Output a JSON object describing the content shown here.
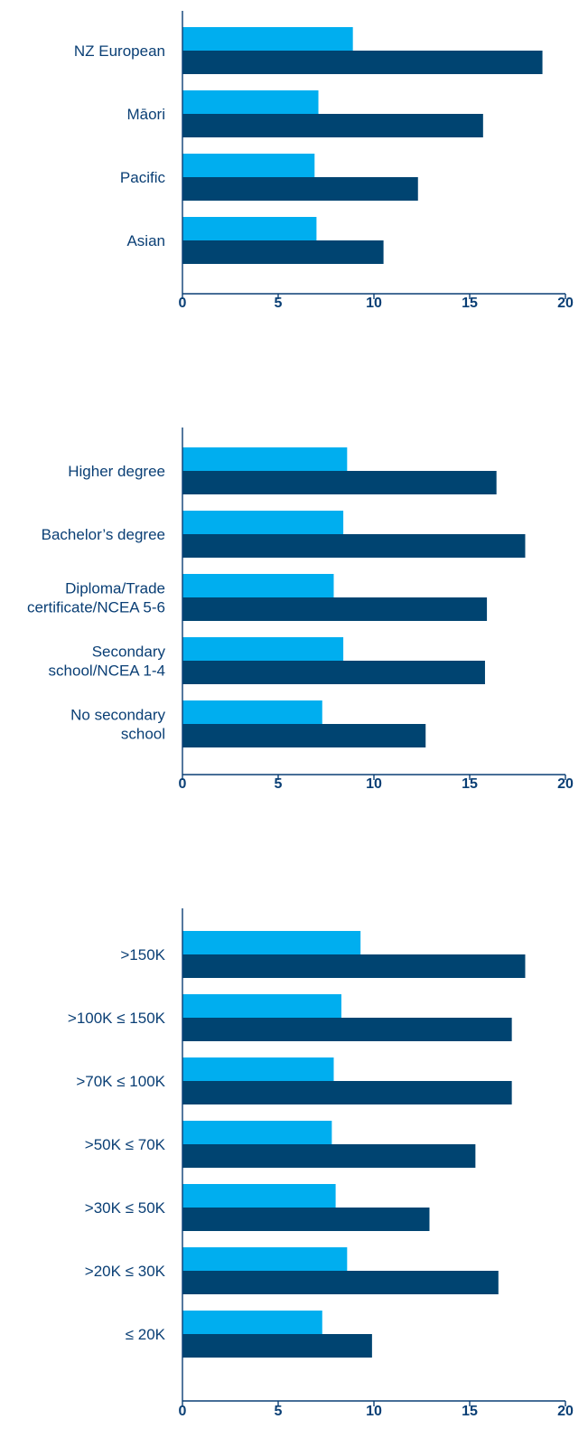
{
  "chart_data": [
    {
      "type": "bar",
      "orientation": "horizontal",
      "xlim": [
        0,
        20
      ],
      "xticks": [
        "0",
        "5",
        "10",
        "15",
        "20"
      ],
      "categories": [
        [
          "NZ European"
        ],
        [
          "Māori"
        ],
        [
          "Pacific"
        ],
        [
          "Asian"
        ]
      ],
      "series": [
        {
          "values": [
            8.9,
            7.1,
            6.9,
            7.0
          ]
        },
        {
          "values": [
            18.8,
            15.7,
            12.3,
            10.5
          ]
        }
      ]
    },
    {
      "type": "bar",
      "orientation": "horizontal",
      "xlim": [
        0,
        20
      ],
      "xticks": [
        "0",
        "5",
        "10",
        "15",
        "20"
      ],
      "categories": [
        [
          "Higher degree"
        ],
        [
          "Bachelor’s degree"
        ],
        [
          "Diploma/Trade",
          "certificate/NCEA 5-6"
        ],
        [
          "Secondary",
          "school/NCEA 1-4"
        ],
        [
          "No secondary",
          "school"
        ]
      ],
      "series": [
        {
          "values": [
            8.6,
            8.4,
            7.9,
            8.4,
            7.3
          ]
        },
        {
          "values": [
            16.4,
            17.9,
            15.9,
            15.8,
            12.7
          ]
        }
      ]
    },
    {
      "type": "bar",
      "orientation": "horizontal",
      "xlim": [
        0,
        20
      ],
      "xticks": [
        "0",
        "5",
        "10",
        "15",
        "20"
      ],
      "categories": [
        [
          ">150K"
        ],
        [
          ">100K ≤ 150K"
        ],
        [
          ">70K ≤ 100K"
        ],
        [
          ">50K ≤ 70K"
        ],
        [
          ">30K ≤ 50K"
        ],
        [
          ">20K ≤ 30K"
        ],
        [
          "≤ 20K"
        ]
      ],
      "series": [
        {
          "values": [
            9.3,
            8.3,
            7.9,
            7.8,
            8.0,
            8.6,
            7.3
          ]
        },
        {
          "values": [
            17.9,
            17.2,
            17.2,
            15.3,
            12.9,
            16.5,
            9.9
          ]
        }
      ]
    }
  ],
  "colors": {
    "series_light": "#00aeef",
    "series_dark": "#004471",
    "axis": "#0a3f75",
    "text": "#0a3f75"
  }
}
